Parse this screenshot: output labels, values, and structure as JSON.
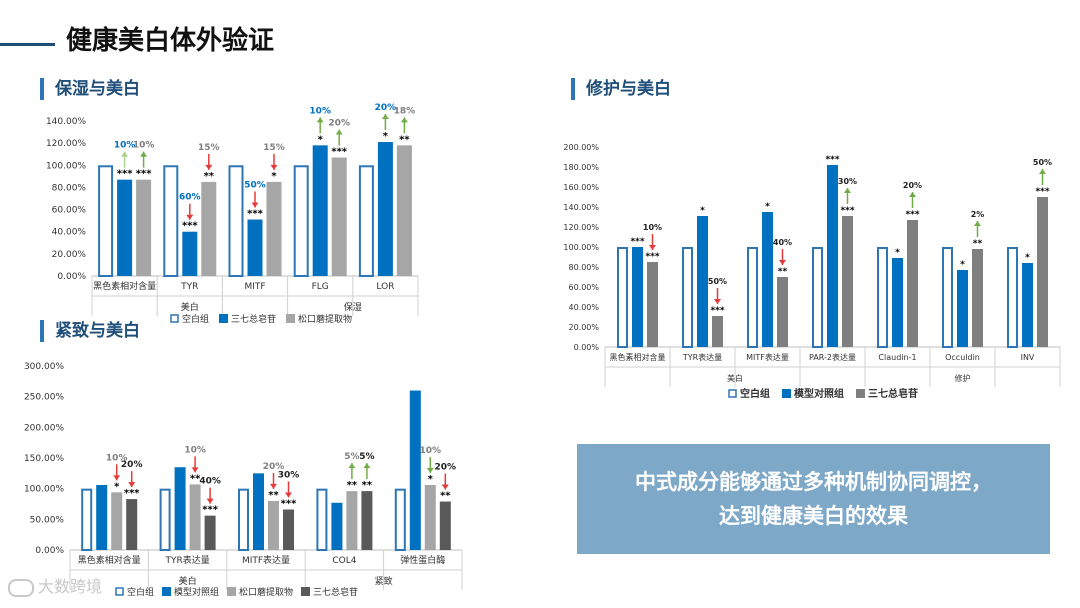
{
  "slide": {
    "title": "健康美白体外验证"
  },
  "sections": {
    "moisture": "保湿与美白",
    "firming": "紧致与美白",
    "repair": "修护与美白"
  },
  "conclusion": {
    "line1": "中式成分能够通过多种机制协同调控，",
    "line2": "达到健康美白的效果"
  },
  "watermark": "大数跨境",
  "chart_data": [
    {
      "type": "bar",
      "title": "",
      "yticks": [
        "0.00%",
        "20.00%",
        "40.00%",
        "60.00%",
        "80.00%",
        "100.00%",
        "120.00%",
        "140.00%"
      ],
      "ylim": [
        0,
        140
      ],
      "categories": [
        "黑色素相对含量",
        "TYR",
        "MITF",
        "FLG",
        "LOR"
      ],
      "groups": [
        {
          "label": "美白",
          "count": 3
        },
        {
          "label": "保湿",
          "count": 2
        }
      ],
      "series": [
        {
          "name": "空白组",
          "style": "outline",
          "color": "#2e75b6",
          "values": [
            100,
            100,
            100,
            100,
            100
          ]
        },
        {
          "name": "三七总皂苷",
          "style": "solid",
          "color": "#0070c0",
          "values": [
            87,
            40,
            51,
            118,
            121
          ]
        },
        {
          "name": "松口蘑提取物",
          "style": "solid",
          "color": "#a6a6a6",
          "values": [
            87,
            85,
            85,
            107,
            118
          ]
        }
      ],
      "annotations": [
        {
          "cat": 0,
          "s": 1,
          "stars": "***",
          "pct": "10%",
          "dir": "up",
          "pct_color": "#0070c0",
          "arrow_color": "#a9d18e"
        },
        {
          "cat": 0,
          "s": 2,
          "stars": "***",
          "pct": "10%",
          "dir": "up",
          "pct_color": "#7f7f7f",
          "arrow_color": "#70ad47"
        },
        {
          "cat": 1,
          "s": 1,
          "stars": "***",
          "pct": "60%",
          "dir": "down",
          "pct_color": "#0070c0",
          "arrow_color": "#e63a3a"
        },
        {
          "cat": 1,
          "s": 2,
          "stars": "**",
          "pct": "15%",
          "dir": "down",
          "pct_color": "#7f7f7f",
          "arrow_color": "#e63a3a"
        },
        {
          "cat": 2,
          "s": 1,
          "stars": "***",
          "pct": "50%",
          "dir": "down",
          "pct_color": "#0070c0",
          "arrow_color": "#e63a3a"
        },
        {
          "cat": 2,
          "s": 2,
          "stars": "*",
          "pct": "15%",
          "dir": "down",
          "pct_color": "#7f7f7f",
          "arrow_color": "#e63a3a"
        },
        {
          "cat": 3,
          "s": 1,
          "stars": "*",
          "pct": "10%",
          "dir": "up",
          "pct_color": "#0070c0",
          "arrow_color": "#70ad47"
        },
        {
          "cat": 3,
          "s": 2,
          "stars": "***",
          "pct": "20%",
          "dir": "up",
          "pct_color": "#7f7f7f",
          "arrow_color": "#70ad47"
        },
        {
          "cat": 4,
          "s": 1,
          "stars": "*",
          "pct": "20%",
          "dir": "up",
          "pct_color": "#0070c0",
          "arrow_color": "#70ad47"
        },
        {
          "cat": 4,
          "s": 2,
          "stars": "**",
          "pct": "18%",
          "dir": "up",
          "pct_color": "#7f7f7f",
          "arrow_color": "#70ad47"
        }
      ]
    },
    {
      "type": "bar",
      "title": "",
      "yticks": [
        "0.00%",
        "50.00%",
        "100.00%",
        "150.00%",
        "200.00%",
        "250.00%",
        "300.00%"
      ],
      "ylim": [
        0,
        300
      ],
      "categories": [
        "黑色素相对含量",
        "TYR表达量",
        "MITF表达量",
        "COL4",
        "弹性蛋白酶"
      ],
      "groups": [
        {
          "label": "美白",
          "count": 3
        },
        {
          "label": "紧致",
          "count": 2
        }
      ],
      "series": [
        {
          "name": "空白组",
          "style": "outline",
          "color": "#2e75b6",
          "values": [
            100,
            100,
            100,
            100,
            100
          ]
        },
        {
          "name": "模型对照组",
          "style": "solid",
          "color": "#0070c0",
          "values": [
            106,
            135,
            125,
            77,
            260
          ]
        },
        {
          "name": "松口蘑提取物",
          "style": "solid",
          "color": "#a6a6a6",
          "values": [
            94,
            107,
            80,
            96,
            106
          ]
        },
        {
          "name": "三七总皂苷",
          "style": "solid",
          "color": "#595959",
          "values": [
            83,
            56,
            66,
            96,
            79
          ]
        }
      ],
      "annotations": [
        {
          "cat": 0,
          "s": 2,
          "stars": "*",
          "pct": "10%",
          "dir": "down",
          "pct_color": "#7f7f7f",
          "arrow_color": "#e63a3a"
        },
        {
          "cat": 0,
          "s": 3,
          "stars": "***",
          "pct": "20%",
          "dir": "down",
          "pct_color": "#222222",
          "arrow_color": "#e63a3a"
        },
        {
          "cat": 1,
          "s": 2,
          "stars": "**",
          "pct": "10%",
          "dir": "down",
          "pct_color": "#7f7f7f",
          "arrow_color": "#e63a3a"
        },
        {
          "cat": 1,
          "s": 3,
          "stars": "***",
          "pct": "40%",
          "dir": "down",
          "pct_color": "#222222",
          "arrow_color": "#e63a3a"
        },
        {
          "cat": 2,
          "s": 2,
          "stars": "**",
          "pct": "20%",
          "dir": "down",
          "pct_color": "#7f7f7f",
          "arrow_color": "#e63a3a"
        },
        {
          "cat": 2,
          "s": 3,
          "stars": "***",
          "pct": "30%",
          "dir": "down",
          "pct_color": "#222222",
          "arrow_color": "#e63a3a"
        },
        {
          "cat": 3,
          "s": 2,
          "stars": "**",
          "pct": "5%",
          "dir": "up",
          "pct_color": "#7f7f7f",
          "arrow_color": "#70ad47"
        },
        {
          "cat": 3,
          "s": 3,
          "stars": "**",
          "pct": "5%",
          "dir": "up",
          "pct_color": "#222222",
          "arrow_color": "#70ad47"
        },
        {
          "cat": 4,
          "s": 2,
          "stars": "*",
          "pct": "10%",
          "dir": "down",
          "pct_color": "#7f7f7f",
          "arrow_color": "#70ad47"
        },
        {
          "cat": 4,
          "s": 3,
          "stars": "**",
          "pct": "20%",
          "dir": "down",
          "pct_color": "#222222",
          "arrow_color": "#e63a3a"
        }
      ]
    },
    {
      "type": "bar",
      "title": "",
      "yticks": [
        "0.00%",
        "20.00%",
        "40.00%",
        "60.00%",
        "80.00%",
        "100.00%",
        "120.00%",
        "140.00%",
        "160.00%",
        "180.00%",
        "200.00%"
      ],
      "ylim": [
        0,
        200
      ],
      "categories": [
        "黑色素相对含量",
        "TYR表达量",
        "MITF表达量",
        "PAR-2表达量",
        "Claudin-1",
        "Occuldin",
        "INV"
      ],
      "groups": [
        {
          "label": "美白",
          "count": 4
        },
        {
          "label": "修护",
          "count": 3
        }
      ],
      "series": [
        {
          "name": "空白组",
          "style": "outline",
          "color": "#2e75b6",
          "values": [
            100,
            100,
            100,
            100,
            100,
            100,
            100
          ]
        },
        {
          "name": "模型对照组",
          "style": "solid",
          "color": "#0070c0",
          "values": [
            100,
            131,
            135,
            182,
            89,
            77,
            84
          ]
        },
        {
          "name": "三七总皂苷",
          "style": "solid",
          "color": "#7f7f7f",
          "values": [
            85,
            31,
            70,
            131,
            127,
            98,
            150
          ]
        }
      ],
      "annotations": [
        {
          "cat": 0,
          "s": 1,
          "stars": "***",
          "pct": "",
          "dir": "",
          "pct_color": "#222222",
          "arrow_color": "#e63a3a"
        },
        {
          "cat": 0,
          "s": 2,
          "stars": "***",
          "pct": "10%",
          "dir": "down",
          "pct_color": "#222222",
          "arrow_color": "#e63a3a"
        },
        {
          "cat": 1,
          "s": 1,
          "stars": "*",
          "pct": "",
          "dir": "",
          "pct_color": "#222222",
          "arrow_color": "#e63a3a"
        },
        {
          "cat": 1,
          "s": 2,
          "stars": "***",
          "pct": "50%",
          "dir": "down",
          "pct_color": "#222222",
          "arrow_color": "#e63a3a"
        },
        {
          "cat": 2,
          "s": 1,
          "stars": "*",
          "pct": "",
          "dir": "",
          "pct_color": "#222222",
          "arrow_color": "#e63a3a"
        },
        {
          "cat": 2,
          "s": 2,
          "stars": "**",
          "pct": "40%",
          "dir": "down",
          "pct_color": "#222222",
          "arrow_color": "#e63a3a"
        },
        {
          "cat": 3,
          "s": 1,
          "stars": "***",
          "pct": "",
          "dir": "",
          "pct_color": "#222222",
          "arrow_color": "#e63a3a"
        },
        {
          "cat": 3,
          "s": 2,
          "stars": "***",
          "pct": "30%",
          "dir": "up",
          "pct_color": "#222222",
          "arrow_color": "#70ad47"
        },
        {
          "cat": 4,
          "s": 1,
          "stars": "*",
          "pct": "",
          "dir": "",
          "pct_color": "#222222",
          "arrow_color": "#70ad47"
        },
        {
          "cat": 4,
          "s": 2,
          "stars": "***",
          "pct": "20%",
          "dir": "up",
          "pct_color": "#222222",
          "arrow_color": "#70ad47"
        },
        {
          "cat": 5,
          "s": 1,
          "stars": "*",
          "pct": "",
          "dir": "",
          "pct_color": "#222222",
          "arrow_color": "#70ad47"
        },
        {
          "cat": 5,
          "s": 2,
          "stars": "**",
          "pct": "2%",
          "dir": "up",
          "pct_color": "#222222",
          "arrow_color": "#70ad47"
        },
        {
          "cat": 6,
          "s": 1,
          "stars": "*",
          "pct": "",
          "dir": "",
          "pct_color": "#222222",
          "arrow_color": "#70ad47"
        },
        {
          "cat": 6,
          "s": 2,
          "stars": "***",
          "pct": "50%",
          "dir": "up",
          "pct_color": "#222222",
          "arrow_color": "#70ad47"
        }
      ]
    }
  ]
}
